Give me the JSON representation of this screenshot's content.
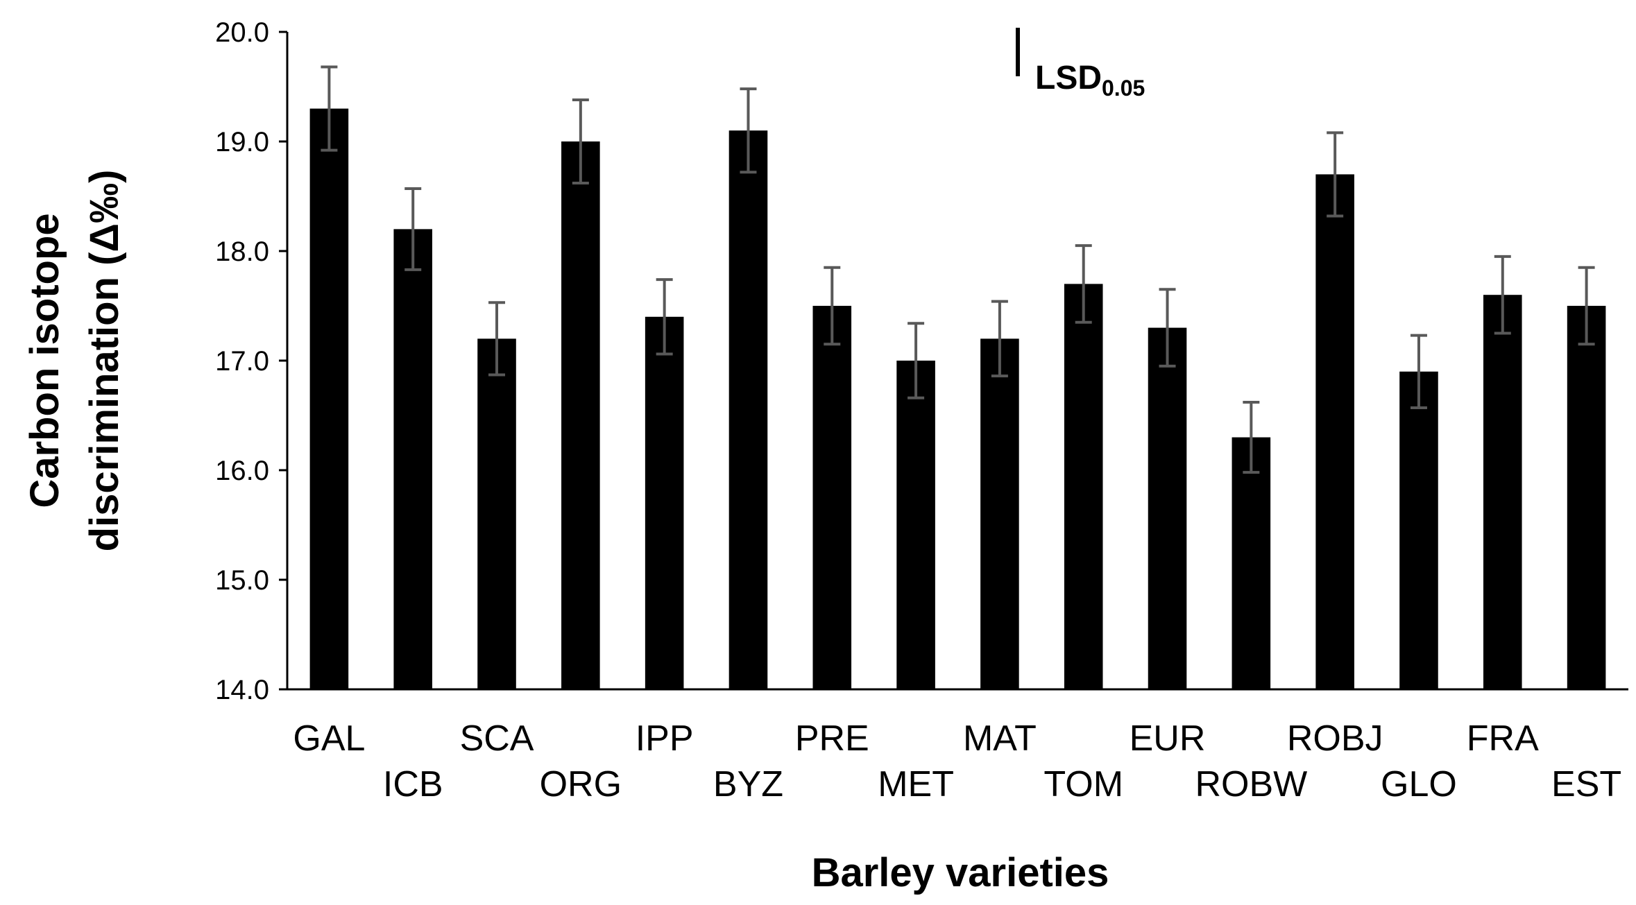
{
  "chart_data": {
    "type": "bar",
    "title": "",
    "xlabel": "Barley varieties",
    "ylabel_line1": "Carbon isotope",
    "ylabel_line2": "discrimination (Δ‰)",
    "ylim": [
      14.0,
      20.0
    ],
    "yticks": [
      "14.0",
      "15.0",
      "16.0",
      "17.0",
      "18.0",
      "19.0",
      "20.0"
    ],
    "grid": false,
    "legend": "none",
    "categories": [
      "GAL",
      "ICB",
      "SCA",
      "ORG",
      "IPP",
      "BYZ",
      "PRE",
      "MET",
      "MAT",
      "TOM",
      "EUR",
      "ROBW",
      "ROBJ",
      "GLO",
      "FRA",
      "EST"
    ],
    "values": [
      19.3,
      18.2,
      17.2,
      19.0,
      17.4,
      19.1,
      17.5,
      17.0,
      17.2,
      17.7,
      17.3,
      16.3,
      18.7,
      16.9,
      17.6,
      17.5
    ],
    "error": [
      0.38,
      0.37,
      0.33,
      0.38,
      0.34,
      0.38,
      0.35,
      0.34,
      0.34,
      0.35,
      0.35,
      0.32,
      0.38,
      0.33,
      0.35,
      0.35
    ],
    "bar_color": "#000000",
    "error_bar_color": "#595959",
    "annotation": {
      "main": "LSD",
      "subscript": "0.05"
    }
  }
}
